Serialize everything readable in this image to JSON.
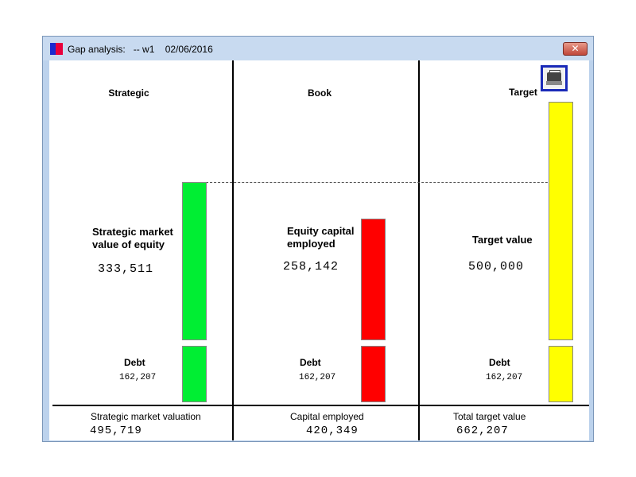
{
  "window": {
    "title": "Gap analysis:   -- w1    02/06/2016",
    "close_label": "✕",
    "app_icon": "app-logo-icon"
  },
  "columns": {
    "strategic": {
      "heading": "Strategic",
      "equity_label_line1": "Strategic market",
      "equity_label_line2": "value of equity",
      "equity_value": "333,511",
      "debt_label": "Debt",
      "debt_value": "162,207",
      "bottom_label": "Strategic market valuation",
      "bottom_value": "495,719",
      "color": "#00ee33"
    },
    "book": {
      "heading": "Book",
      "equity_label_line1": "Equity capital",
      "equity_label_line2": "employed",
      "equity_value": "258,142",
      "debt_label": "Debt",
      "debt_value": "162,207",
      "bottom_label": "Capital employed",
      "bottom_value": "420,349",
      "color": "#ff0000"
    },
    "target": {
      "heading": "Target",
      "equity_label": "Target value",
      "equity_value": "500,000",
      "debt_label": "Debt",
      "debt_value": "162,207",
      "bottom_label": "Total target value",
      "bottom_value": "662,207",
      "color": "#ffff00"
    }
  },
  "toolbar": {
    "print_icon": "printer-icon"
  }
}
